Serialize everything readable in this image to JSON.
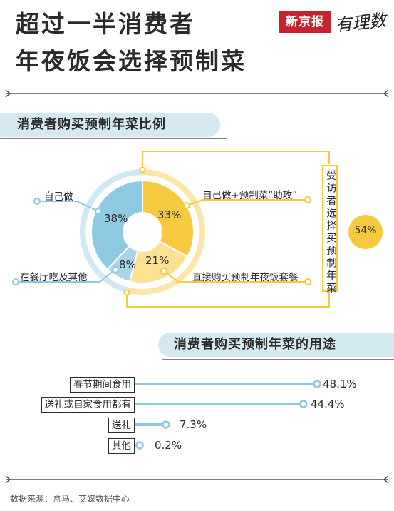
{
  "header": {
    "title_line1": "超过一半消费者",
    "title_line2": "年夜饭会选择预制菜",
    "brand_name": "新京报",
    "brand_column": "有理数"
  },
  "section1": {
    "title": "消费者购买预制年菜比例"
  },
  "section2": {
    "title": "消费者购买预制年菜的用途"
  },
  "chart_data": [
    {
      "type": "pie",
      "title": "消费者购买预制年菜比例",
      "slices": [
        {
          "label": "自己做+预制菜“助攻”",
          "value": 33,
          "display": "33%",
          "color": "#f6c93e"
        },
        {
          "label": "直接购买预制年夜饭套餐",
          "value": 21,
          "display": "21%",
          "color": "#f9e196"
        },
        {
          "label": "在餐厅吃及其他",
          "value": 8,
          "display": "8%",
          "color": "#a8d6e8"
        },
        {
          "label": "自己做",
          "value": 38,
          "display": "38%",
          "color": "#8ec9e2"
        }
      ],
      "group": {
        "label": "受访者选择买预制年菜",
        "value": 54,
        "display": "54%"
      }
    },
    {
      "type": "bar",
      "orientation": "horizontal",
      "title": "消费者购买预制年菜的用途",
      "categories": [
        "春节期间食用",
        "送礼或自家食用都有",
        "送礼",
        "其他"
      ],
      "values": [
        48.1,
        44.4,
        7.3,
        0.2
      ],
      "value_labels": [
        "48.1%",
        "44.4%",
        "7.3%",
        "0.2%"
      ],
      "unit": "%",
      "color": "#8ec9e2"
    }
  ],
  "footer": {
    "source": "数据来源：盒马、艾媒数据中心"
  }
}
